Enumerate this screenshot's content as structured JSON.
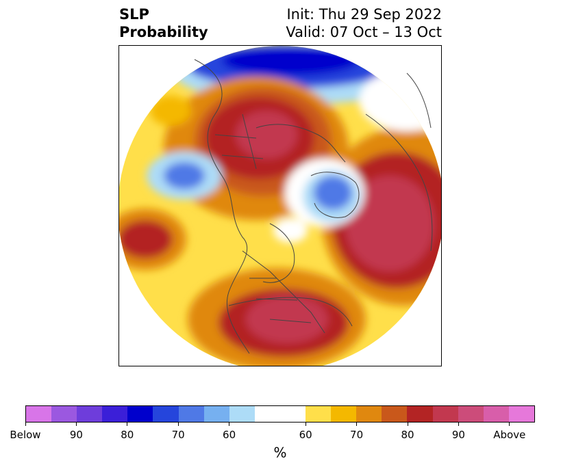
{
  "title": {
    "left_line1": "SLP",
    "left_line2": "Probability",
    "right_line1": "Init: Thu 29 Sep 2022",
    "right_line2": "Valid: 07 Oct – 13 Oct"
  },
  "map": {
    "projection": "north-polar-stereographic",
    "background": "#ffffff",
    "coastline_color": "#444444"
  },
  "colorbar": {
    "colors": [
      "#d875e8",
      "#9b58e0",
      "#6e3ddb",
      "#3b1fd8",
      "#0000cc",
      "#2545dc",
      "#4f79e6",
      "#76b0f0",
      "#addcf7",
      "#ffffff",
      "#ffdf4a",
      "#f4b800",
      "#e0880f",
      "#c9581b",
      "#b32424",
      "#c2384f",
      "#cc4c7a",
      "#d85eaa",
      "#e678da"
    ],
    "tick_labels": [
      "Below",
      "90",
      "80",
      "70",
      "60",
      "60",
      "70",
      "80",
      "90",
      "Above"
    ],
    "unit_label": "%"
  }
}
